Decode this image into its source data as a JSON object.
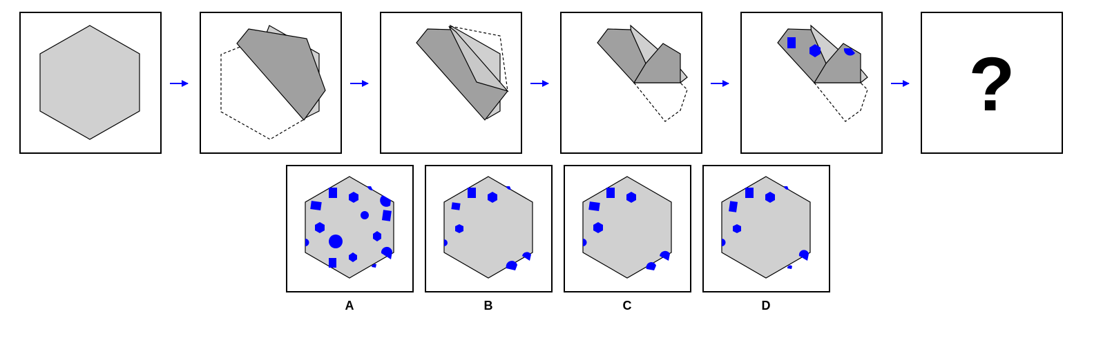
{
  "question_mark": "?",
  "options": [
    {
      "label": "A"
    },
    {
      "label": "B"
    },
    {
      "label": "C"
    },
    {
      "label": "D"
    }
  ],
  "colors": {
    "paper": "#d0d0d0",
    "folded_paper": "#a0a0a0",
    "hole": "#0000ff",
    "arrow": "#0000ff",
    "frame": "#000000"
  },
  "icons": [
    "arrow-right-icon"
  ]
}
